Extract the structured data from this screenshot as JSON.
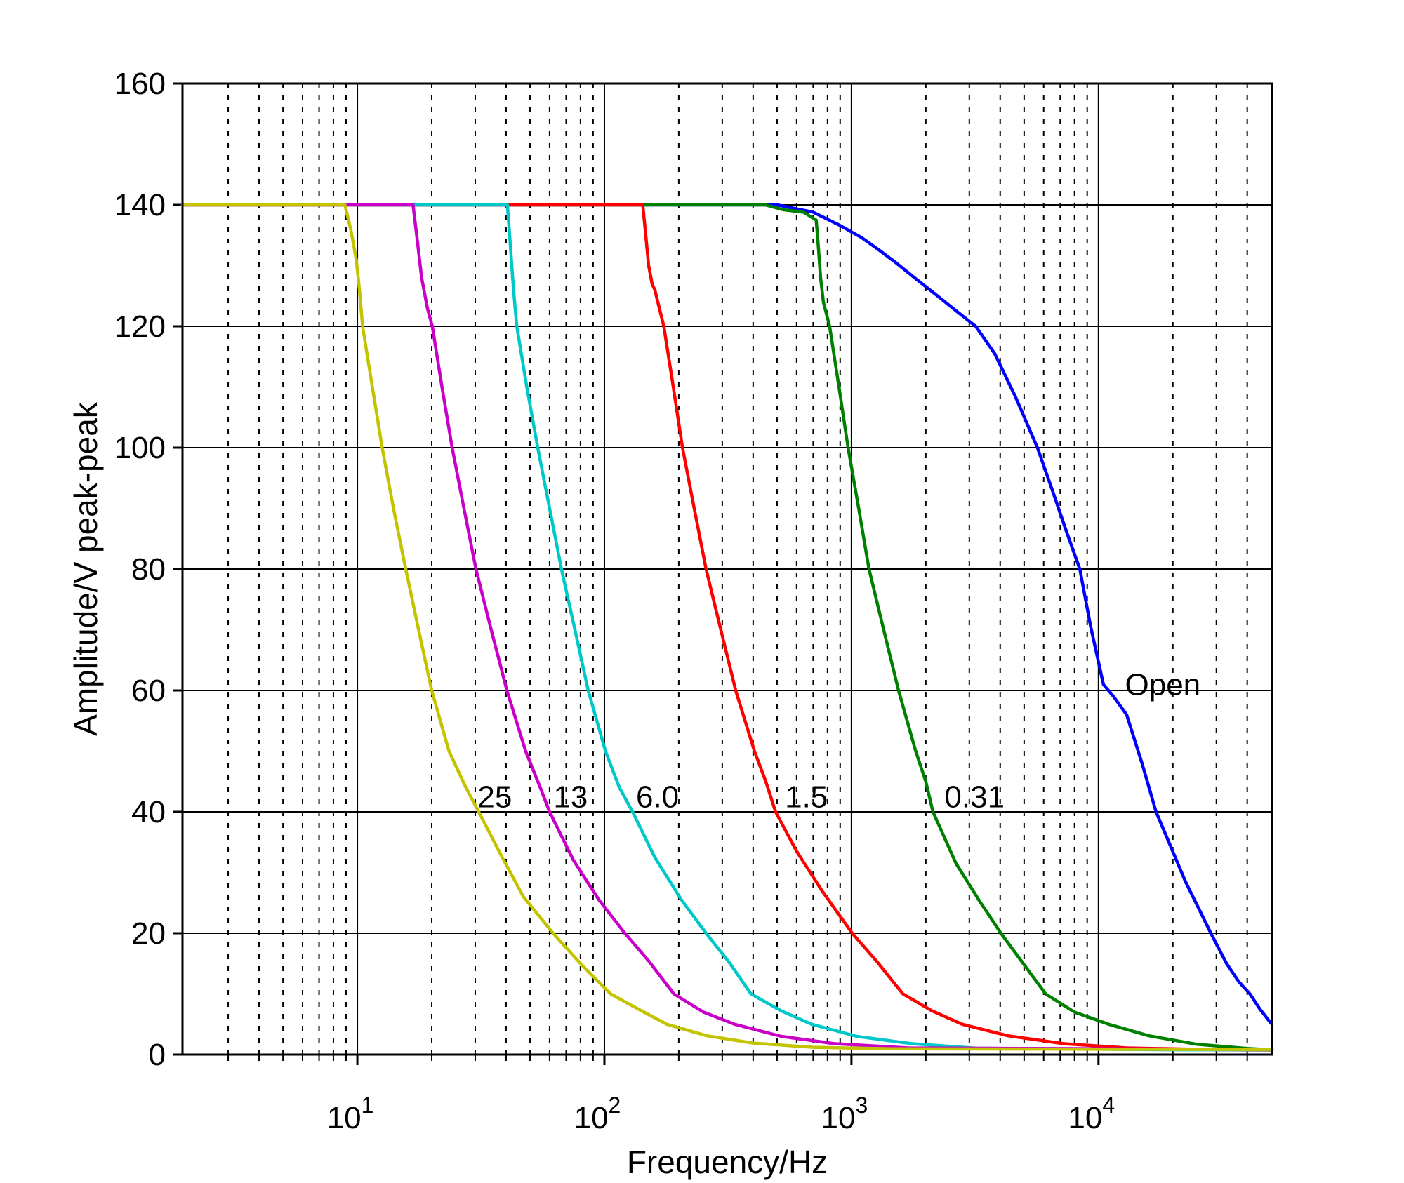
{
  "figure": {
    "background": "#ffffff",
    "axis_color": "#000000",
    "grid_color": "#000000"
  },
  "chart_data": {
    "type": "line",
    "title": "",
    "xlabel": "Frequency/Hz",
    "ylabel": "Amplitude/V peak-peak",
    "x_scale": "log",
    "y_scale": "linear",
    "xlim": [
      1.96,
      50400
    ],
    "ylim": [
      0,
      160
    ],
    "y_ticks": [
      0,
      20,
      40,
      60,
      80,
      100,
      120,
      140,
      160
    ],
    "x_major_tick_exponents": [
      1,
      2,
      3,
      4
    ],
    "x_tick_base": "10",
    "grid": {
      "horizontal": "solid",
      "vertical_major": "solid",
      "vertical_minor": "dashed",
      "legend": "none"
    },
    "series": [
      {
        "name": "25",
        "label": "25",
        "color": "#c3c300",
        "label_pos": [
          36,
          42.5
        ],
        "points": [
          [
            1.96,
            140
          ],
          [
            5,
            140
          ],
          [
            8.9,
            140
          ],
          [
            9.4,
            136
          ],
          [
            9.9,
            131
          ],
          [
            10.2,
            126
          ],
          [
            10.5,
            120
          ],
          [
            11.5,
            110
          ],
          [
            12.6,
            100
          ],
          [
            14,
            90
          ],
          [
            15.7,
            80
          ],
          [
            17.7,
            70
          ],
          [
            20,
            60
          ],
          [
            23.5,
            50
          ],
          [
            27.5,
            44
          ],
          [
            31,
            40
          ],
          [
            38,
            33
          ],
          [
            47,
            26
          ],
          [
            62,
            20
          ],
          [
            80,
            15
          ],
          [
            106,
            10
          ],
          [
            140,
            7.3
          ],
          [
            179,
            5
          ],
          [
            260,
            3.1
          ],
          [
            400,
            1.9
          ],
          [
            700,
            1.2
          ],
          [
            1500,
            0.95
          ],
          [
            20000,
            0.85
          ],
          [
            50400,
            0.85
          ]
        ]
      },
      {
        "name": "13",
        "label": "13",
        "color": "#c800c8",
        "label_pos": [
          73,
          42.5
        ],
        "points": [
          [
            1.96,
            140
          ],
          [
            10,
            140
          ],
          [
            16.8,
            140
          ],
          [
            17.5,
            134
          ],
          [
            18.2,
            128
          ],
          [
            19.2,
            123
          ],
          [
            20.1,
            120
          ],
          [
            22,
            110
          ],
          [
            24.2,
            100
          ],
          [
            27,
            90
          ],
          [
            30.2,
            80
          ],
          [
            34.8,
            70
          ],
          [
            40.3,
            60
          ],
          [
            48,
            50
          ],
          [
            55,
            44
          ],
          [
            60,
            40
          ],
          [
            75,
            32
          ],
          [
            95,
            25.5
          ],
          [
            121,
            20
          ],
          [
            152,
            15.3
          ],
          [
            191,
            10
          ],
          [
            252,
            7
          ],
          [
            337,
            5
          ],
          [
            520,
            3
          ],
          [
            850,
            1.8
          ],
          [
            1700,
            1.1
          ],
          [
            20000,
            0.9
          ],
          [
            50400,
            0.9
          ]
        ]
      },
      {
        "name": "6.0",
        "label": "6.0",
        "color": "#00c8c8",
        "label_pos": [
          164,
          42.5
        ],
        "points": [
          [
            1.96,
            140
          ],
          [
            20,
            140
          ],
          [
            40.5,
            140
          ],
          [
            41.5,
            134
          ],
          [
            42.5,
            128
          ],
          [
            43.5,
            123
          ],
          [
            44.2,
            120
          ],
          [
            48.5,
            110
          ],
          [
            53.7,
            100
          ],
          [
            60,
            90
          ],
          [
            67,
            80
          ],
          [
            76,
            70
          ],
          [
            86,
            60
          ],
          [
            101,
            50
          ],
          [
            115,
            44
          ],
          [
            130,
            40
          ],
          [
            160,
            32.5
          ],
          [
            205,
            25.5
          ],
          [
            258,
            20
          ],
          [
            320,
            15.2
          ],
          [
            392,
            10
          ],
          [
            520,
            7.2
          ],
          [
            691,
            5
          ],
          [
            1050,
            3
          ],
          [
            1750,
            1.8
          ],
          [
            3200,
            1.05
          ],
          [
            20000,
            0.8
          ],
          [
            50400,
            0.8
          ]
        ]
      },
      {
        "name": "1.5",
        "label": "1.5",
        "color": "#ff0000",
        "label_pos": [
          657,
          42.5
        ],
        "points": [
          [
            1.96,
            140
          ],
          [
            80,
            140
          ],
          [
            143,
            140
          ],
          [
            147,
            135
          ],
          [
            151,
            130
          ],
          [
            156,
            127
          ],
          [
            160,
            126
          ],
          [
            174,
            120
          ],
          [
            190,
            110
          ],
          [
            207,
            100
          ],
          [
            231,
            90
          ],
          [
            258,
            80
          ],
          [
            296,
            70
          ],
          [
            340,
            60
          ],
          [
            405,
            50
          ],
          [
            450,
            45
          ],
          [
            493,
            40
          ],
          [
            600,
            33.5
          ],
          [
            760,
            27
          ],
          [
            1007,
            20
          ],
          [
            1270,
            15.3
          ],
          [
            1616,
            10
          ],
          [
            2120,
            7.2
          ],
          [
            2810,
            5
          ],
          [
            4300,
            3.1
          ],
          [
            7200,
            1.8
          ],
          [
            13000,
            1.1
          ],
          [
            30000,
            0.8
          ],
          [
            50400,
            0.75
          ]
        ]
      },
      {
        "name": "0.31",
        "label": "0.31",
        "color": "#008000",
        "label_pos": [
          3150,
          42.5
        ],
        "points": [
          [
            1.96,
            140
          ],
          [
            200,
            140
          ],
          [
            448,
            140
          ],
          [
            530,
            139.2
          ],
          [
            640,
            138.8
          ],
          [
            720,
            137.5
          ],
          [
            735,
            133
          ],
          [
            750,
            128
          ],
          [
            770,
            124
          ],
          [
            816,
            120
          ],
          [
            890,
            110
          ],
          [
            969,
            100
          ],
          [
            1070,
            90
          ],
          [
            1178,
            80
          ],
          [
            1350,
            70
          ],
          [
            1551,
            60
          ],
          [
            1820,
            50
          ],
          [
            2000,
            45
          ],
          [
            2138,
            40
          ],
          [
            2650,
            31.5
          ],
          [
            3300,
            25.3
          ],
          [
            4027,
            20
          ],
          [
            5000,
            14.8
          ],
          [
            6110,
            10
          ],
          [
            8000,
            7
          ],
          [
            11000,
            5
          ],
          [
            16000,
            3.1
          ],
          [
            25000,
            1.7
          ],
          [
            40000,
            1
          ],
          [
            50400,
            0.8
          ]
        ]
      },
      {
        "name": "Open",
        "label": "Open",
        "color": "#0000ff",
        "label_pos": [
          18200,
          61
        ],
        "points": [
          [
            1.96,
            140
          ],
          [
            200,
            140
          ],
          [
            500,
            140
          ],
          [
            700,
            138.8
          ],
          [
            900,
            136.6
          ],
          [
            1100,
            134.6
          ],
          [
            1300,
            132.5
          ],
          [
            1500,
            130.6
          ],
          [
            1800,
            128
          ],
          [
            2200,
            125.2
          ],
          [
            2700,
            122.3
          ],
          [
            3184,
            120
          ],
          [
            3800,
            115.5
          ],
          [
            4600,
            108.5
          ],
          [
            5660,
            100
          ],
          [
            6500,
            93
          ],
          [
            7400,
            86.3
          ],
          [
            8400,
            80
          ],
          [
            9300,
            70.5
          ],
          [
            10470,
            61
          ],
          [
            11500,
            59
          ],
          [
            13000,
            56
          ],
          [
            15000,
            48
          ],
          [
            17100,
            40
          ],
          [
            19500,
            34.5
          ],
          [
            22500,
            28.5
          ],
          [
            25500,
            24
          ],
          [
            28500,
            20
          ],
          [
            33000,
            15
          ],
          [
            37000,
            12
          ],
          [
            41000,
            10
          ],
          [
            45000,
            7.5
          ],
          [
            48500,
            5.8
          ],
          [
            50400,
            5
          ]
        ]
      }
    ]
  }
}
